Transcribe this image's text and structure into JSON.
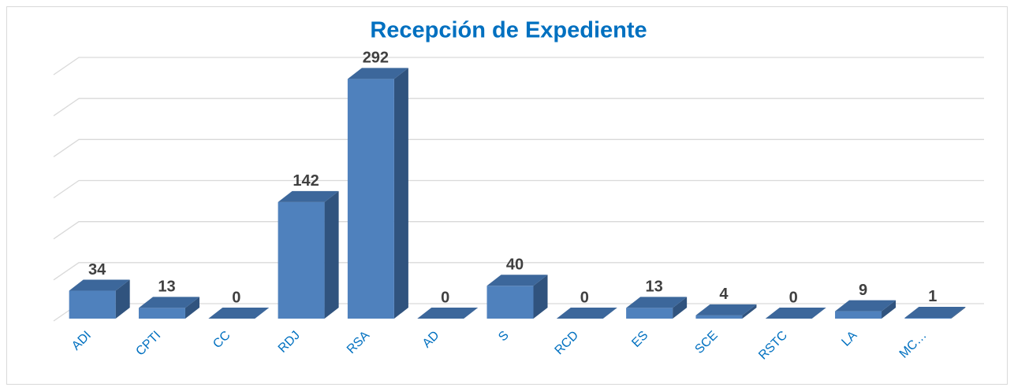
{
  "chart_data": {
    "type": "bar3d",
    "title": "Recepción de Expediente",
    "categories": [
      "ADI",
      "CPTI",
      "CC",
      "RDJ",
      "RSA",
      "AD",
      "S",
      "RCD",
      "ES",
      "SCE",
      "RSTC",
      "LA",
      "MC…"
    ],
    "values": [
      34,
      13,
      0,
      142,
      292,
      0,
      40,
      0,
      13,
      4,
      0,
      9,
      1
    ],
    "color": "#4f81bd",
    "ylim": [
      0,
      300
    ],
    "yticks": [
      0,
      50,
      100,
      150,
      200,
      250,
      300
    ],
    "show_ytick_labels": false,
    "grid": true,
    "data_labels": true
  }
}
